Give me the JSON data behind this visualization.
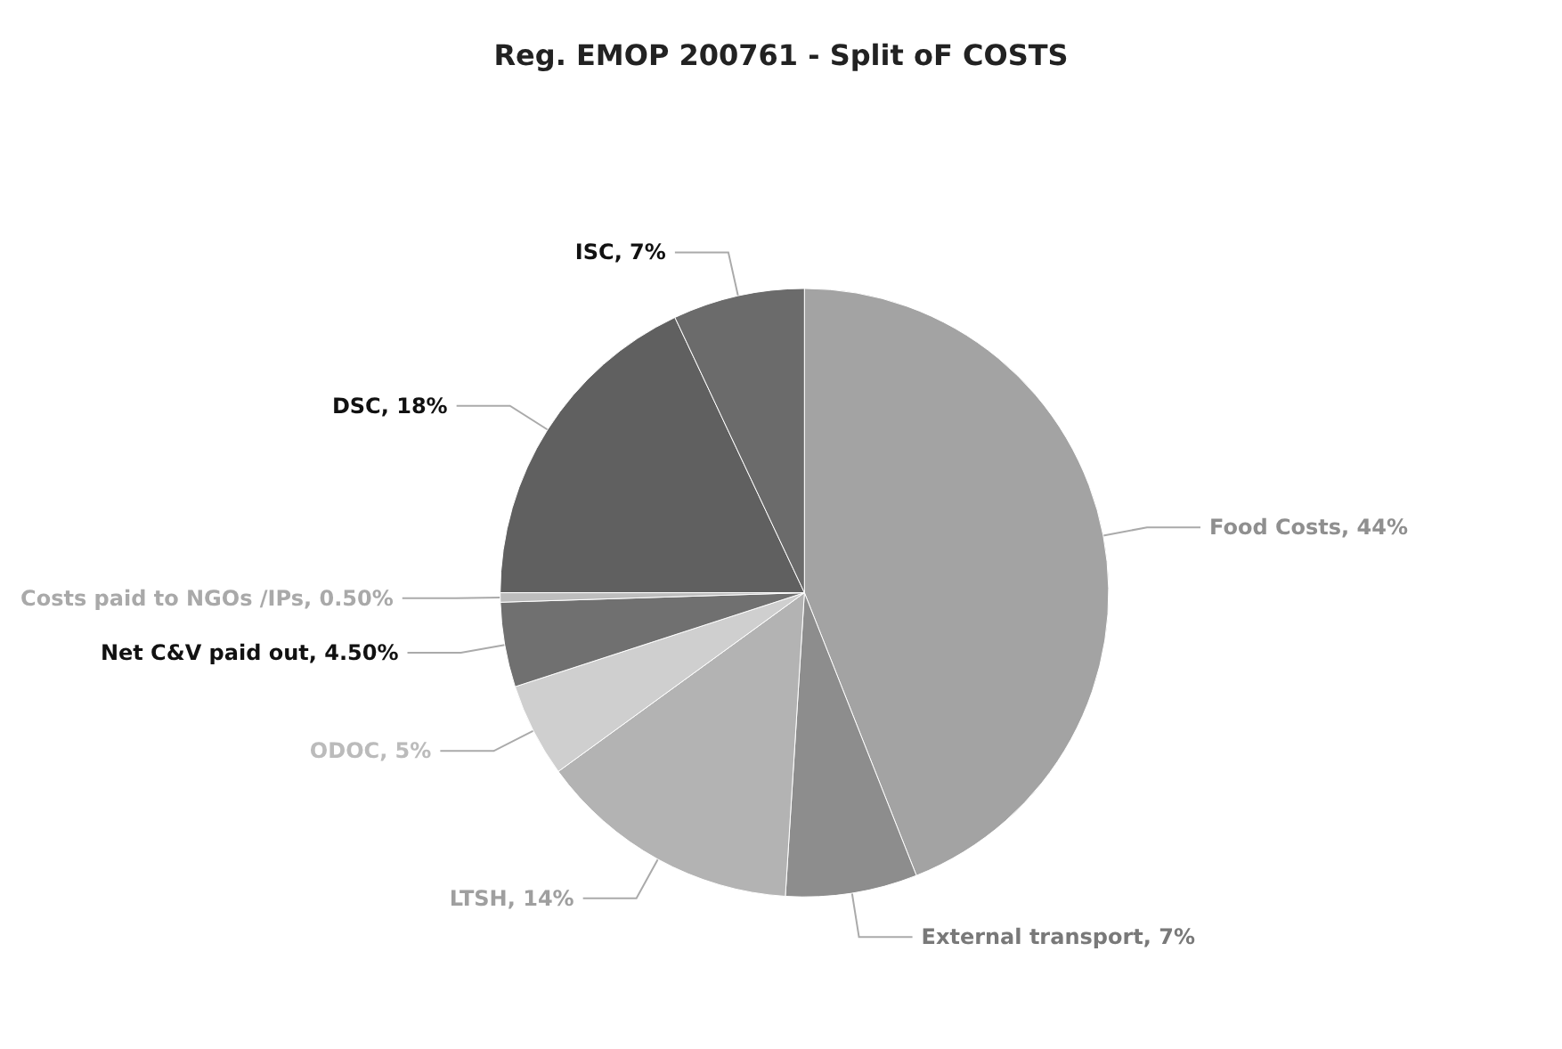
{
  "chart_data": {
    "type": "pie",
    "title": "Reg. EMOP 200761 - Split oF COSTS",
    "categories": [
      "Food Costs",
      "External transport",
      "LTSH",
      "ODOC",
      "Net C&V paid out",
      "Costs paid to NGOs /IPs",
      "DSC",
      "ISC"
    ],
    "values": [
      44,
      7,
      14,
      5,
      4.5,
      0.5,
      18,
      7
    ],
    "value_labels": [
      "44%",
      "7%",
      "14%",
      "5%",
      "4.50%",
      "0.50%",
      "18%",
      "7%"
    ],
    "colors": [
      "#a3a3a3",
      "#8d8d8d",
      "#b3b3b3",
      "#cfcfcf",
      "#707070",
      "#bdbdbd",
      "#606060",
      "#6b6b6b"
    ],
    "legend": false
  }
}
